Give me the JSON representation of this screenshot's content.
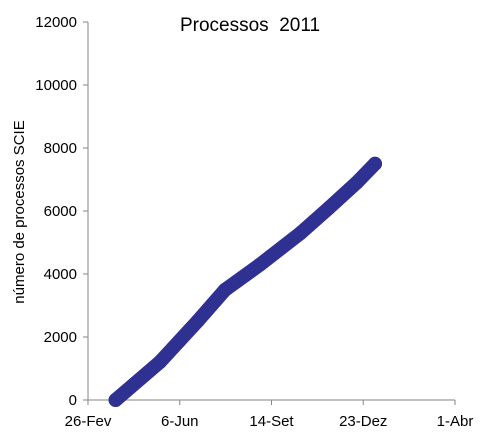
{
  "chart_data": {
    "type": "line",
    "title": "Processos  2011",
    "xlabel": "",
    "ylabel": "número de processos SCIE",
    "x_tick_labels": [
      "26-Fev",
      "6-Jun",
      "14-Set",
      "23-Dez",
      "1-Abr"
    ],
    "y_tick_labels": [
      "0",
      "2000",
      "4000",
      "6000",
      "8000",
      "10000",
      "12000"
    ],
    "ylim": [
      0,
      12000
    ],
    "xlim": [
      "2010-02-26",
      "2011-04-01"
    ],
    "grid": false,
    "legend": "none",
    "series": [
      {
        "color": "#2E3192",
        "x": [
          "2010-03-28",
          "2010-05-15",
          "2010-06-25",
          "2010-07-25",
          "2010-09-01",
          "2010-10-15",
          "2010-11-15",
          "2010-12-15",
          "2011-01-04"
        ],
        "y": [
          0,
          1200,
          2500,
          3500,
          4300,
          5300,
          6100,
          6900,
          7500
        ]
      }
    ]
  }
}
